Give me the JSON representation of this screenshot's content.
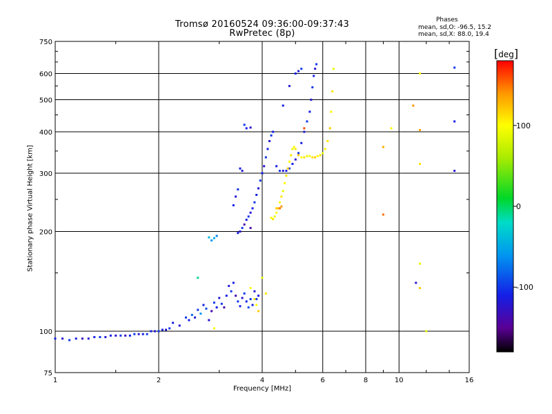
{
  "header": {
    "title_line1": "Tromsø 20160524 09:36:00-09:37:43",
    "title_line2": "RwPretec (8p)",
    "phase_header": "Phases",
    "phase_o_label": "mean, sd,O:",
    "phase_o_values": "-96.5, 15.2",
    "phase_x_label": "mean, sd,X:",
    "phase_x_values": "88.0, 19.4"
  },
  "colorbar": {
    "unit": "deg",
    "ticks": [
      "100",
      "0",
      "-100"
    ],
    "tick_values": [
      100,
      0,
      -100
    ],
    "range": [
      -180,
      180
    ]
  },
  "chart_data": {
    "type": "scatter",
    "title": "Tromsø 20160524 09:36:00-09:37:43",
    "subtitle": "RwPretec (8p)",
    "xlabel": "Frequency [MHz]",
    "ylabel": "Stationary phase Virtual Height [km]",
    "xscale": "log",
    "yscale": "log",
    "xlim": [
      1,
      16
    ],
    "ylim": [
      75,
      750
    ],
    "xticks": [
      1,
      2,
      4,
      6,
      8,
      10,
      16
    ],
    "xtick_labels": [
      "1",
      "2",
      "4",
      "6",
      "8",
      "10",
      "16"
    ],
    "yticks": [
      75,
      100,
      200,
      300,
      400,
      500,
      600,
      750
    ],
    "ytick_labels": [
      "75",
      "100",
      "200",
      "300",
      "400",
      "500",
      "600",
      "750"
    ],
    "grid": true,
    "color_by": "phase (deg)",
    "series": [
      {
        "mode": "O",
        "points": [
          [
            1.0,
            95,
            -110
          ],
          [
            1.05,
            95,
            -120
          ],
          [
            1.1,
            94,
            -100
          ],
          [
            1.15,
            95,
            -110
          ],
          [
            1.2,
            95,
            -130
          ],
          [
            1.25,
            95,
            -120
          ],
          [
            1.3,
            96,
            -110
          ],
          [
            1.35,
            96,
            -100
          ],
          [
            1.4,
            96,
            -120
          ],
          [
            1.45,
            97,
            -110
          ],
          [
            1.5,
            97,
            -120
          ],
          [
            1.55,
            97,
            -100
          ],
          [
            1.6,
            97,
            -130
          ],
          [
            1.65,
            97,
            -110
          ],
          [
            1.7,
            98,
            -100
          ],
          [
            1.75,
            98,
            -120
          ],
          [
            1.8,
            98,
            -110
          ],
          [
            1.85,
            98,
            -100
          ],
          [
            1.9,
            100,
            -110
          ],
          [
            1.95,
            100,
            -120
          ],
          [
            2.0,
            100,
            -100
          ],
          [
            2.05,
            101,
            -110
          ],
          [
            2.1,
            101,
            -120
          ],
          [
            2.15,
            102,
            -100
          ],
          [
            2.2,
            106,
            -110
          ],
          [
            2.3,
            104,
            -120
          ],
          [
            2.4,
            110,
            -100
          ],
          [
            2.45,
            108,
            -110
          ],
          [
            2.5,
            112,
            -80
          ],
          [
            2.55,
            110,
            -120
          ],
          [
            2.6,
            116,
            -100
          ],
          [
            2.65,
            113,
            -60
          ],
          [
            2.7,
            120,
            -110
          ],
          [
            2.75,
            117,
            -90
          ],
          [
            2.8,
            108,
            -120
          ],
          [
            2.85,
            115,
            -140
          ],
          [
            2.9,
            122,
            -100
          ],
          [
            2.95,
            118,
            -110
          ],
          [
            3.0,
            126,
            -120
          ],
          [
            3.05,
            121,
            -100
          ],
          [
            3.1,
            118,
            -140
          ],
          [
            3.15,
            128,
            -110
          ],
          [
            3.2,
            137,
            -120
          ],
          [
            3.25,
            132,
            -100
          ],
          [
            3.3,
            140,
            -110
          ],
          [
            3.35,
            128,
            -140
          ],
          [
            3.4,
            123,
            -100
          ],
          [
            3.45,
            119,
            -110
          ],
          [
            3.5,
            126,
            -120
          ],
          [
            3.55,
            130,
            -100
          ],
          [
            3.6,
            123,
            -110
          ],
          [
            3.65,
            118,
            -90
          ],
          [
            3.7,
            125,
            -100
          ],
          [
            3.75,
            120,
            -110
          ],
          [
            3.8,
            132,
            -120
          ],
          [
            3.85,
            125,
            -100
          ],
          [
            3.9,
            128,
            -110
          ],
          [
            2.8,
            192,
            -40
          ],
          [
            2.85,
            188,
            -60
          ],
          [
            2.9,
            191,
            -50
          ],
          [
            2.95,
            194,
            -70
          ],
          [
            3.4,
            198,
            -110
          ],
          [
            3.45,
            200,
            -120
          ],
          [
            3.5,
            205,
            -100
          ],
          [
            3.55,
            210,
            -140
          ],
          [
            3.6,
            217,
            -110
          ],
          [
            3.65,
            222,
            -100
          ],
          [
            3.7,
            228,
            -120
          ],
          [
            3.75,
            235,
            -110
          ],
          [
            3.8,
            245,
            -100
          ],
          [
            3.85,
            258,
            -110
          ],
          [
            3.9,
            270,
            -120
          ],
          [
            3.95,
            285,
            -100
          ],
          [
            4.0,
            300,
            -110
          ],
          [
            4.05,
            315,
            -120
          ],
          [
            4.1,
            335,
            -100
          ],
          [
            4.15,
            355,
            -110
          ],
          [
            4.2,
            375,
            -120
          ],
          [
            4.25,
            390,
            -100
          ],
          [
            4.3,
            400,
            -110
          ],
          [
            3.3,
            240,
            -110
          ],
          [
            3.35,
            255,
            -120
          ],
          [
            3.4,
            268,
            -100
          ],
          [
            3.45,
            310,
            -110
          ],
          [
            3.5,
            305,
            -120
          ],
          [
            3.55,
            420,
            -100
          ],
          [
            3.6,
            410,
            -110
          ],
          [
            3.7,
            412,
            -120
          ],
          [
            4.4,
            315,
            -110
          ],
          [
            4.5,
            305,
            -100
          ],
          [
            4.6,
            305,
            -120
          ],
          [
            4.7,
            305,
            -110
          ],
          [
            4.8,
            310,
            -100
          ],
          [
            4.9,
            320,
            -110
          ],
          [
            5.0,
            330,
            -120
          ],
          [
            5.1,
            345,
            -100
          ],
          [
            5.2,
            370,
            -110
          ],
          [
            5.3,
            400,
            -120
          ],
          [
            5.4,
            430,
            -100
          ],
          [
            5.5,
            460,
            -110
          ],
          [
            5.55,
            500,
            -120
          ],
          [
            5.6,
            545,
            -100
          ],
          [
            5.65,
            590,
            -110
          ],
          [
            5.7,
            620,
            -120
          ],
          [
            5.75,
            640,
            -100
          ],
          [
            5.0,
            600,
            -110
          ],
          [
            5.1,
            610,
            -120
          ],
          [
            5.2,
            620,
            -100
          ],
          [
            4.6,
            480,
            -110
          ],
          [
            4.8,
            550,
            -120
          ],
          [
            14.5,
            625,
            -100
          ],
          [
            14.5,
            430,
            -110
          ],
          [
            14.5,
            305,
            -120
          ]
        ]
      },
      {
        "mode": "X",
        "points": [
          [
            4.25,
            220,
            100
          ],
          [
            4.3,
            218,
            110
          ],
          [
            4.35,
            222,
            90
          ],
          [
            4.4,
            228,
            100
          ],
          [
            4.45,
            235,
            120
          ],
          [
            4.5,
            245,
            100
          ],
          [
            4.55,
            255,
            110
          ],
          [
            4.6,
            265,
            90
          ],
          [
            4.65,
            280,
            100
          ],
          [
            4.7,
            295,
            110
          ],
          [
            4.75,
            310,
            120
          ],
          [
            4.8,
            325,
            100
          ],
          [
            4.85,
            340,
            110
          ],
          [
            4.9,
            355,
            90
          ],
          [
            4.95,
            360,
            100
          ],
          [
            5.0,
            355,
            110
          ],
          [
            5.1,
            340,
            120
          ],
          [
            5.2,
            335,
            100
          ],
          [
            5.3,
            335,
            110
          ],
          [
            5.4,
            338,
            90
          ],
          [
            5.5,
            338,
            100
          ],
          [
            5.6,
            335,
            110
          ],
          [
            5.7,
            335,
            120
          ],
          [
            5.8,
            338,
            100
          ],
          [
            5.9,
            340,
            110
          ],
          [
            6.0,
            345,
            90
          ],
          [
            6.1,
            355,
            100
          ],
          [
            6.2,
            375,
            110
          ],
          [
            6.3,
            410,
            120
          ],
          [
            6.35,
            460,
            100
          ],
          [
            6.4,
            530,
            110
          ],
          [
            6.45,
            620,
            90
          ],
          [
            3.7,
            135,
            100
          ],
          [
            3.8,
            125,
            110
          ],
          [
            3.85,
            120,
            100
          ],
          [
            3.9,
            115,
            120
          ],
          [
            2.9,
            102,
            100
          ],
          [
            4.1,
            130,
            110
          ],
          [
            4.0,
            145,
            90
          ],
          [
            4.4,
            235,
            120
          ],
          [
            11.5,
            600,
            100
          ],
          [
            11.5,
            320,
            110
          ],
          [
            11.5,
            135,
            120
          ],
          [
            12.0,
            100,
            90
          ],
          [
            9.5,
            410,
            100
          ]
        ]
      },
      {
        "mode": "other",
        "points": [
          [
            9.0,
            360,
            130
          ],
          [
            9.0,
            225,
            150
          ],
          [
            11.0,
            480,
            140
          ],
          [
            11.5,
            405,
            135
          ],
          [
            4.5,
            235,
            150
          ],
          [
            4.55,
            238,
            140
          ],
          [
            5.3,
            410,
            160
          ],
          [
            11.5,
            160,
            90
          ],
          [
            11.2,
            140,
            -120
          ],
          [
            2.6,
            145,
            -10
          ],
          [
            3.7,
            205,
            -140
          ]
        ]
      }
    ]
  }
}
